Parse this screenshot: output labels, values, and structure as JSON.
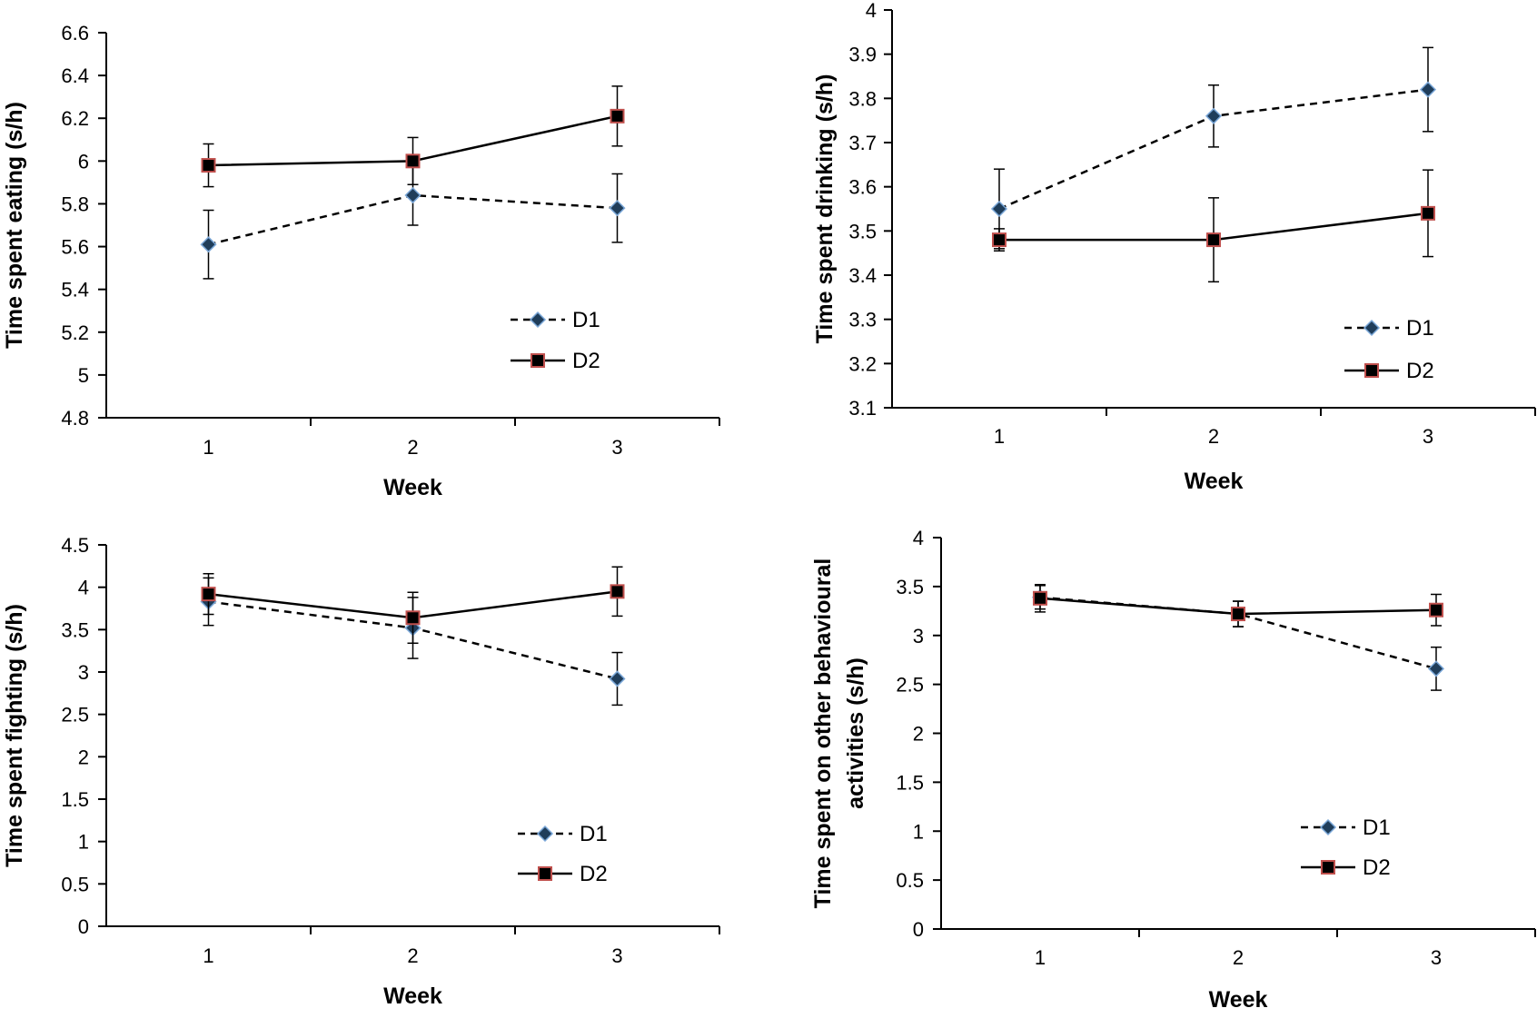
{
  "chart_data": [
    {
      "type": "line",
      "xlabel": "Week",
      "ylabel": "Time spent eating (s/h)",
      "categories": [
        "1",
        "2",
        "3"
      ],
      "ylim": [
        4.8,
        6.6
      ],
      "yticks": [
        "4.8",
        "5",
        "5.2",
        "5.4",
        "5.6",
        "5.8",
        "6",
        "6.2",
        "6.4",
        "6.6"
      ],
      "legend_position": "bottom-right",
      "series": [
        {
          "name": "D1",
          "style": "dashed",
          "marker": "diamond",
          "values": [
            5.61,
            5.84,
            5.78
          ],
          "errors": [
            0.16,
            0.14,
            0.16
          ]
        },
        {
          "name": "D2",
          "style": "solid",
          "marker": "square",
          "values": [
            5.98,
            6.0,
            6.21
          ],
          "errors": [
            0.1,
            0.11,
            0.14
          ]
        }
      ]
    },
    {
      "type": "line",
      "xlabel": "Week",
      "ylabel": "Time spent drinking (s/h)",
      "categories": [
        "1",
        "2",
        "3"
      ],
      "ylim": [
        3.1,
        4.0
      ],
      "yticks": [
        "3.1",
        "3.2",
        "3.3",
        "3.4",
        "3.5",
        "3.6",
        "3.7",
        "3.8",
        "3.9",
        "4"
      ],
      "legend_position": "bottom-right",
      "series": [
        {
          "name": "D1",
          "style": "dashed",
          "marker": "diamond",
          "values": [
            3.55,
            3.76,
            3.82
          ],
          "errors": [
            0.09,
            0.07,
            0.095
          ]
        },
        {
          "name": "D2",
          "style": "solid",
          "marker": "square",
          "values": [
            3.48,
            3.48,
            3.54
          ],
          "errors": [
            0.025,
            0.095,
            0.098
          ]
        }
      ]
    },
    {
      "type": "line",
      "xlabel": "Week",
      "ylabel": "Time spent fighting (s/h)",
      "categories": [
        "1",
        "2",
        "3"
      ],
      "ylim": [
        0,
        4.5
      ],
      "yticks": [
        "0",
        "0.5",
        "1",
        "1.5",
        "2",
        "2.5",
        "3",
        "3.5",
        "4",
        "4.5"
      ],
      "legend_position": "bottom-right",
      "series": [
        {
          "name": "D1",
          "style": "dashed",
          "marker": "diamond",
          "values": [
            3.83,
            3.52,
            2.92
          ],
          "errors": [
            0.28,
            0.36,
            0.31
          ]
        },
        {
          "name": "D2",
          "style": "solid",
          "marker": "square",
          "values": [
            3.92,
            3.64,
            3.95
          ],
          "errors": [
            0.24,
            0.3,
            0.29
          ]
        }
      ]
    },
    {
      "type": "line",
      "xlabel": "Week",
      "ylabel": "Time spent on other behavioural activities (s/h)",
      "ylabel_lines": [
        "Time spent on other behavioural",
        "activities (s/h)"
      ],
      "categories": [
        "1",
        "2",
        "3"
      ],
      "ylim": [
        0,
        4
      ],
      "yticks": [
        "0",
        "0.5",
        "1",
        "1.5",
        "2",
        "2.5",
        "3",
        "3.5",
        "4"
      ],
      "legend_position": "bottom-right",
      "series": [
        {
          "name": "D1",
          "style": "dashed",
          "marker": "diamond",
          "values": [
            3.39,
            3.22,
            2.66
          ],
          "errors": [
            0.12,
            0.13,
            0.22
          ]
        },
        {
          "name": "D2",
          "style": "solid",
          "marker": "square",
          "values": [
            3.38,
            3.22,
            3.26
          ],
          "errors": [
            0.14,
            0.13,
            0.16
          ]
        }
      ]
    }
  ],
  "colors": {
    "axis": "#000000",
    "line": "#000000",
    "d1_marker_fill": "#1f3d5a",
    "d1_marker_edge": "#7aa7d8",
    "d2_marker_fill": "#000000",
    "d2_marker_edge": "#c0504d"
  }
}
